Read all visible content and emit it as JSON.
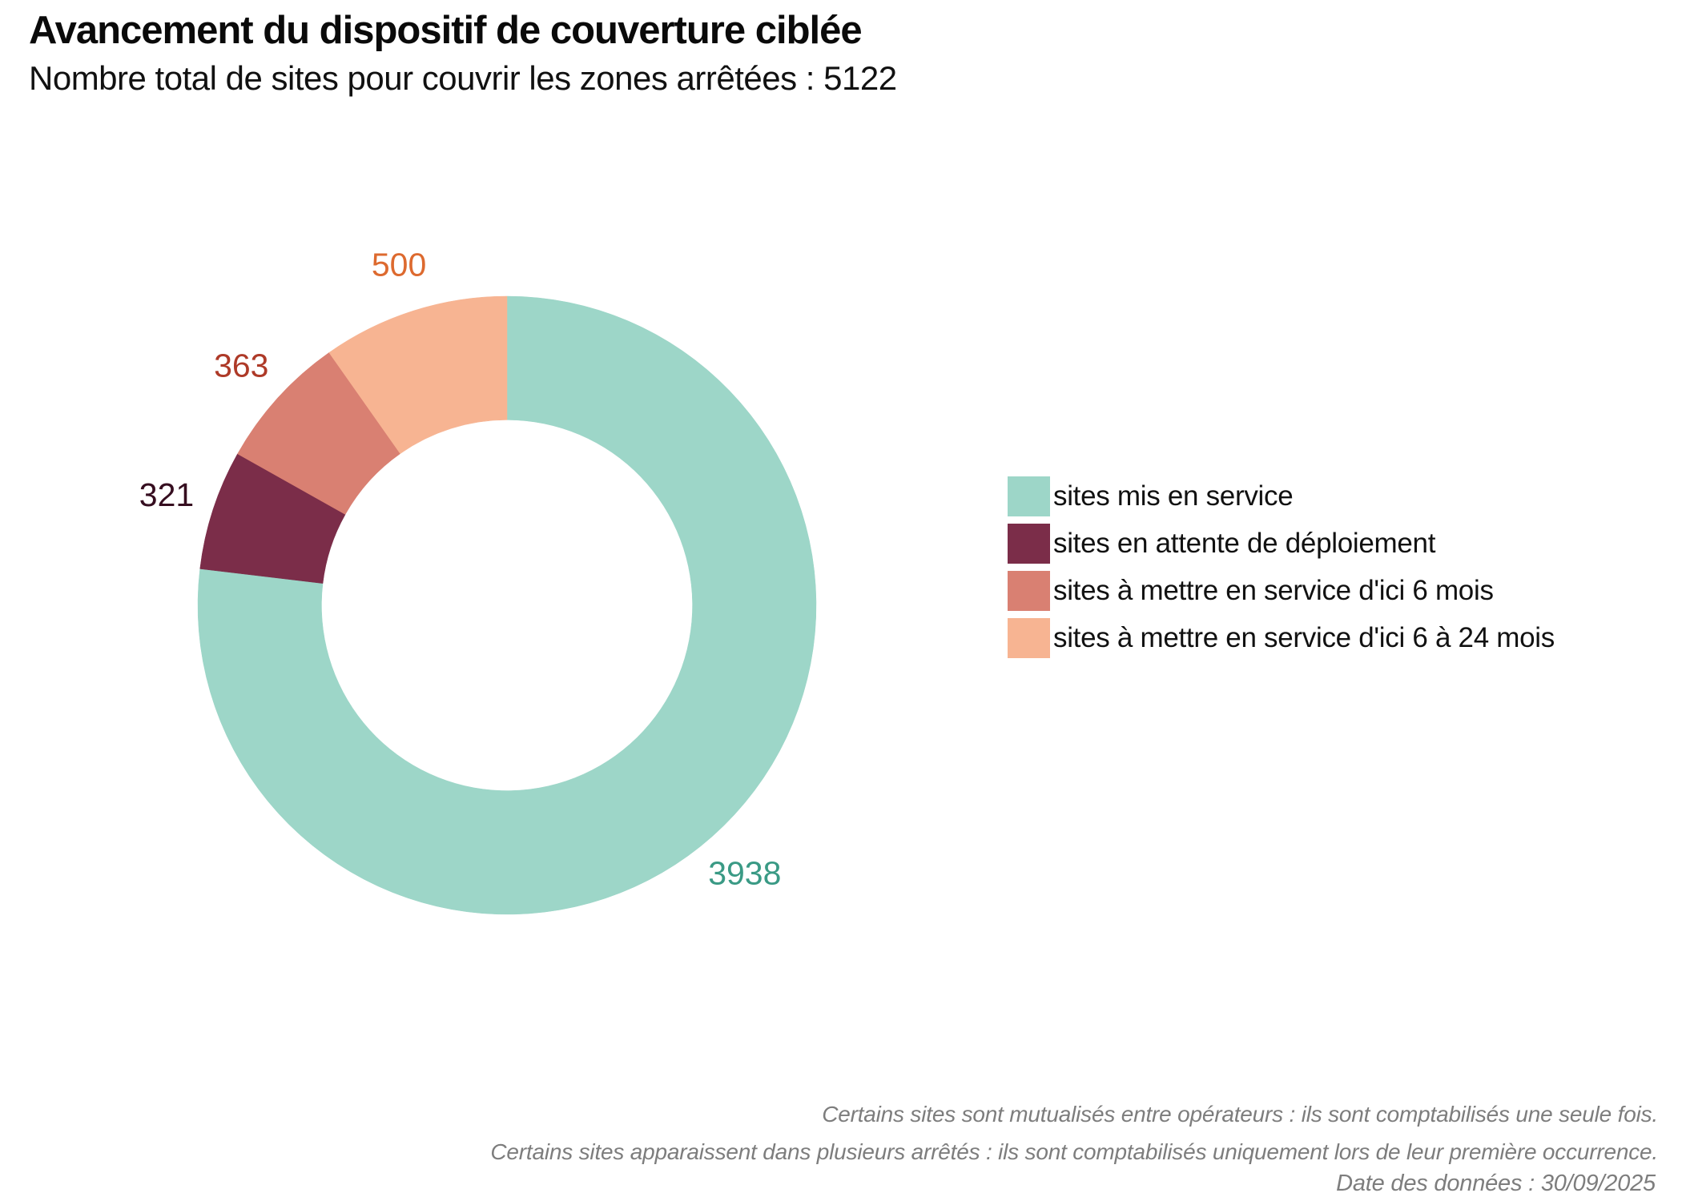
{
  "header": {
    "title": "Avancement du dispositif de couverture ciblée",
    "subtitle": "Nombre total de sites pour couvrir les zones arrêtées : 5122"
  },
  "chart_data": {
    "type": "pie",
    "donut": true,
    "title": "Avancement du dispositif de couverture ciblée",
    "subtitle": "Nombre total de sites pour couvrir les zones arrêtées : 5122",
    "total_sites": 5122,
    "start_angle_deg": 0,
    "direction": "clockwise",
    "inner_radius_ratio": 0.6,
    "legend_position": "right",
    "series": [
      {
        "label": "sites mis en service",
        "value": 3938,
        "color": "#9dd6c8",
        "label_color": "#3a9a85"
      },
      {
        "label": "sites en attente de déploiement",
        "value": 321,
        "color": "#7b2d49",
        "label_color": "#360e20"
      },
      {
        "label": "sites à mettre en service d'ici 6 mois",
        "value": 363,
        "color": "#d98072",
        "label_color": "#ae3a28"
      },
      {
        "label": "sites à mettre en service d'ici 6 à 24 mois",
        "value": 500,
        "color": "#f7b492",
        "label_color": "#dd6a2f"
      }
    ]
  },
  "footer": {
    "note_line1": "Certains sites sont mutualisés entre opérateurs : ils sont comptabilisés une seule fois.",
    "note_line2": "Certains sites apparaissent dans plusieurs arrêtés : ils sont comptabilisés uniquement lors de leur première occurrence.",
    "date_label": "Date des données : 30/09/2025"
  }
}
